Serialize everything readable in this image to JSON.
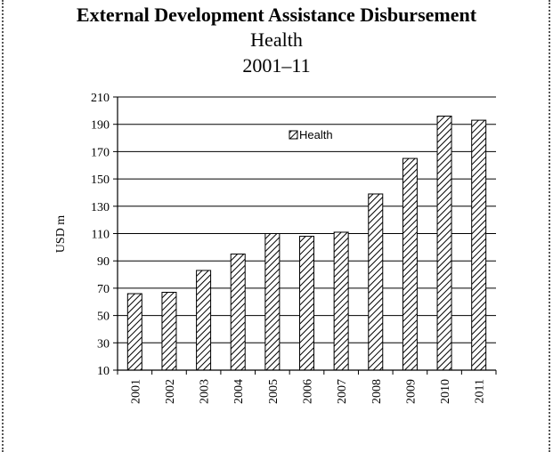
{
  "chart_data": {
    "type": "bar",
    "title": "External Development Assistance Disbursement",
    "subtitle_lines": [
      "Health",
      "2001–11"
    ],
    "ylabel": "USD m",
    "xlabel": "",
    "ylim": [
      10,
      210
    ],
    "yticks": [
      10,
      30,
      50,
      70,
      90,
      110,
      130,
      150,
      170,
      190,
      210
    ],
    "grid": true,
    "legend_position": "top-right",
    "categories": [
      "2001",
      "2002",
      "2003",
      "2004",
      "2005",
      "2006",
      "2007",
      "2008",
      "2009",
      "2010",
      "2011"
    ],
    "series": [
      {
        "name": "Health",
        "values": [
          66,
          67,
          83,
          95,
          110,
          108,
          111,
          139,
          165,
          196,
          193
        ]
      }
    ],
    "bar_fill": "hatched",
    "colors": {
      "bar_stroke": "#000000",
      "hatch": "#000000",
      "grid": "#000000"
    }
  }
}
